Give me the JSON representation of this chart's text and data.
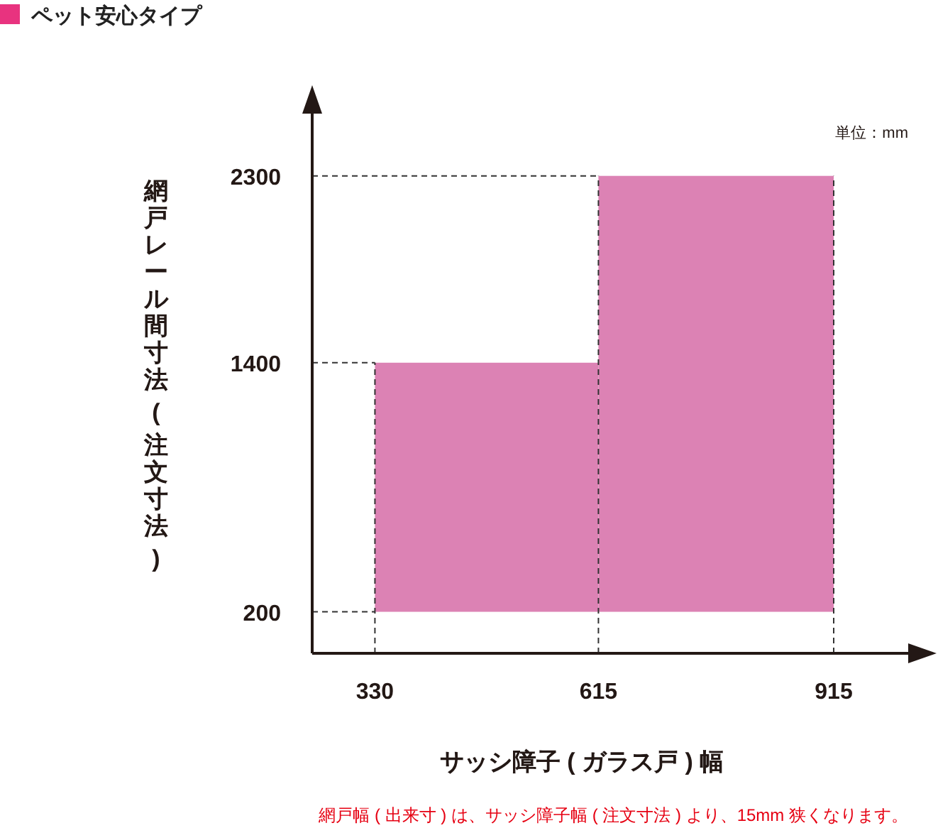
{
  "chart_data": {
    "type": "histogram",
    "title": "ペット安心タイプ",
    "xlabel": "サッシ障子 ( ガラス戸 ) 幅",
    "ylabel": "網戸レール間寸法 ( 注文寸法 )",
    "annotations": [
      "単位：mm",
      "網戸幅 ( 出来寸 ) は、サッシ障子幅 ( 注文寸法 ) より、15mm 狭くなります。"
    ],
    "bins": [
      330,
      615,
      915
    ],
    "values": [
      1200,
      2100
    ],
    "base": [
      200,
      200
    ],
    "color": "#dc82b4",
    "ref_lines": [
      {
        "axis": "y",
        "value": 200,
        "color": "#333333",
        "line_style": "dashed"
      },
      {
        "axis": "y",
        "value": 1400,
        "color": "#333333",
        "line_style": "dashed"
      },
      {
        "axis": "y",
        "value": 2300,
        "color": "#333333",
        "line_style": "dashed"
      },
      {
        "axis": "x",
        "value": 330,
        "color": "#333333",
        "line_style": "dashed"
      },
      {
        "axis": "x",
        "value": 615,
        "color": "#333333",
        "line_style": "dashed"
      },
      {
        "axis": "x",
        "value": 915,
        "color": "#333333",
        "line_style": "dashed"
      }
    ],
    "xlim": [
      250,
      1010
    ],
    "ylim": [
      0,
      2600
    ],
    "xticks": [
      330,
      615,
      915
    ],
    "yticks": [
      200,
      1400,
      2300
    ]
  }
}
